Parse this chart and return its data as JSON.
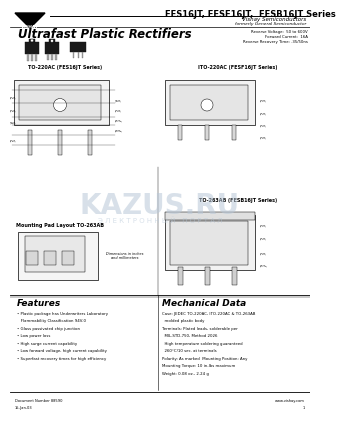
{
  "title_series": "FES16JT, FESF16JT,  FESB16JT Series",
  "subtitle": "Vishay Semiconductors",
  "subtitle2": "formerly General Semiconductor",
  "main_title": "Ultrafast Plastic Rectifiers",
  "specs": [
    "Reverse Voltage:  50 to 600V",
    "Forward Current:  16A",
    "Reverse Recovery Time: .35/50ns"
  ],
  "to220_label": "TO-220AC (FES16JT Series)",
  "ito220_label": "ITO-220AC (FESF16JT Series)",
  "to263_label": "TO-263AB (FESB16JT Series)",
  "mounting_label": "Mounting Pad Layout TO-263AB",
  "features_title": "Features",
  "features": [
    "Plastic package has Underwriters Laboratory",
    "  Flammability Classification 94V-0",
    "Glass passivated chip junction",
    "Low power loss",
    "High surge current capability",
    "Low forward voltage, high current capability",
    "Superfast recovery times for high efficiency"
  ],
  "mech_title": "Mechanical Data",
  "mech_data": [
    "Case: JEDEC TO-220AC, ITO-220AC & TO-263AB",
    "  molded plastic body",
    "Terminals: Plated leads, solderable per",
    "  MIL-STD-750, Method 2026",
    "  High temperature soldering guaranteed",
    "  260°C/10 sec. at terminals",
    "Polarity: As marked  Mounting Position: Any",
    "Mounting Torque: 10 in-lbs maximum",
    "Weight: 0.08 oz., 2.24 g"
  ],
  "doc_number": "Document Number 88590",
  "doc_date": "15-Jan-03",
  "website": "www.vishay.com",
  "page": "1",
  "bg_color": "#ffffff",
  "watermark_color": "#b8c8d8",
  "watermark_text": "KAZUS.RU",
  "watermark_sub": "Э Л Е К Т Р О Н Н Ы Й   П О Р Т А Л"
}
